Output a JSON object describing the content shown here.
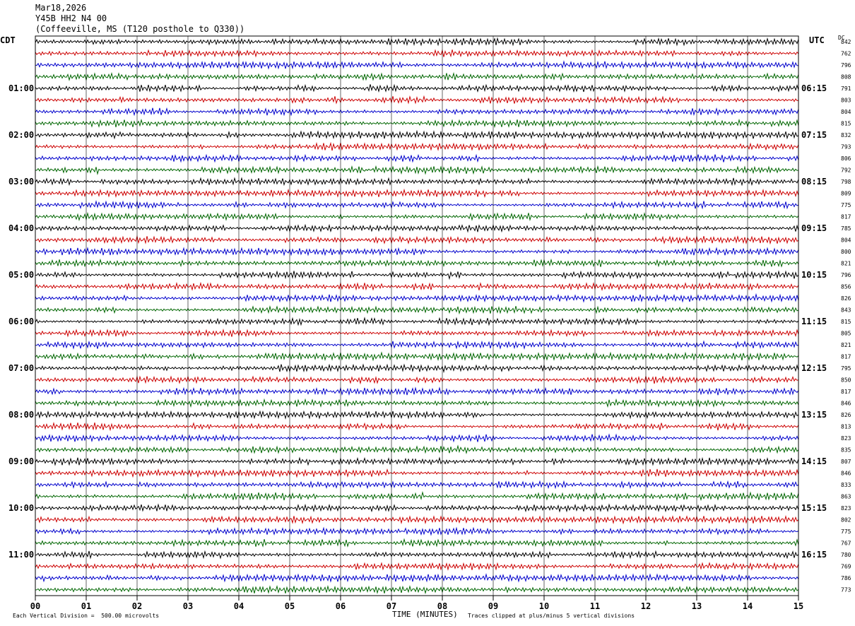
{
  "header": {
    "date": "Mar18,2026",
    "channel": "Y45B HH2 N4 00",
    "location": "(Coffeeville, MS (T120 posthole to Q330))"
  },
  "left_label": "CDT",
  "right_label": "UTC",
  "dc_label": "DC",
  "footer": {
    "scale": "Each Vertical Division =  500.00 microvolts",
    "xlabel": "TIME (MINUTES)",
    "clip": "Traces clipped at plus/minus 5 vertical divisions"
  },
  "chart_data": {
    "type": "line",
    "xlabel": "TIME (MINUTES)",
    "xlim": [
      0,
      15
    ],
    "x_ticks": [
      "00",
      "01",
      "02",
      "03",
      "04",
      "05",
      "06",
      "07",
      "08",
      "09",
      "10",
      "11",
      "12",
      "13",
      "14",
      "15"
    ],
    "left_hour_labels": [
      "01:00",
      "02:00",
      "03:00",
      "04:00",
      "05:00",
      "06:00",
      "07:00",
      "08:00",
      "09:00",
      "10:00",
      "11:00"
    ],
    "right_hour_labels": [
      "06:15",
      "07:15",
      "08:15",
      "09:15",
      "10:15",
      "11:15",
      "12:15",
      "13:15",
      "14:15",
      "15:15",
      "16:15"
    ],
    "trace_colors": [
      "#000000",
      "#cc0000",
      "#0000cc",
      "#006600"
    ],
    "dc_offsets": [
      842,
      762,
      796,
      808,
      791,
      803,
      804,
      815,
      832,
      793,
      806,
      792,
      798,
      809,
      775,
      817,
      785,
      804,
      800,
      821,
      796,
      856,
      826,
      843,
      815,
      805,
      821,
      817,
      795,
      850,
      817,
      846,
      826,
      813,
      823,
      835,
      807,
      846,
      833,
      863,
      823,
      802,
      775,
      767,
      780,
      769,
      786,
      773
    ],
    "grid": "vertical minute lines"
  }
}
